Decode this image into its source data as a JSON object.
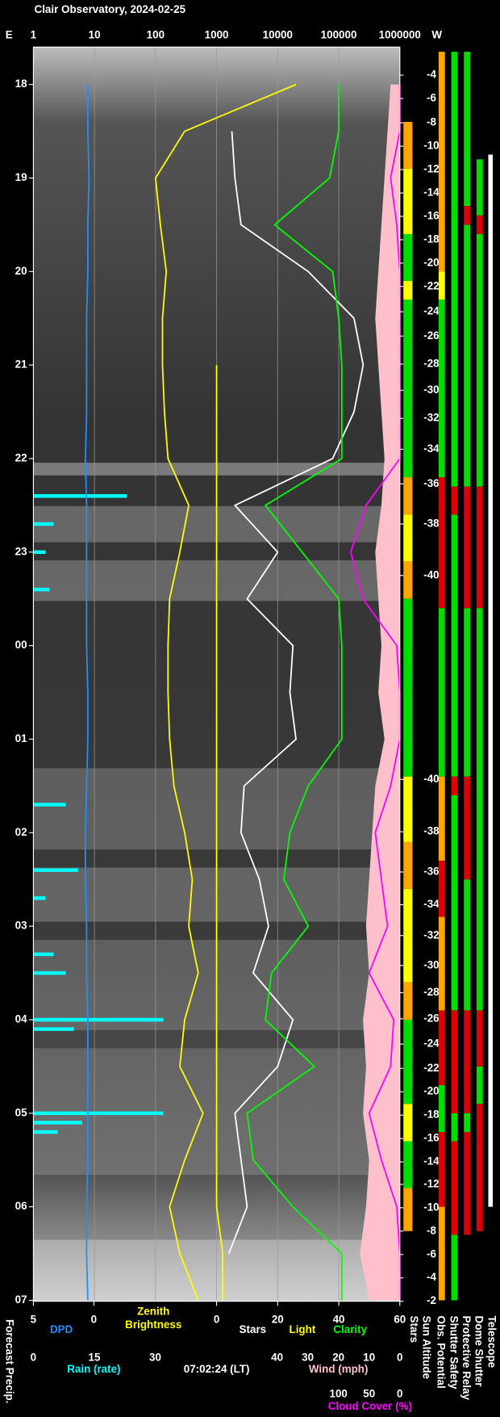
{
  "chart_data": {
    "type": "observatory",
    "title": "Clair Observatory, 2024-02-25",
    "left_label": "E",
    "right_label": "W",
    "time_axis": {
      "lim": [
        17.6,
        31.01
      ],
      "ticks": [
        18,
        19,
        20,
        21,
        22,
        23,
        {
          "value": 24,
          "label": "00"
        },
        {
          "value": 25,
          "label": "01"
        },
        {
          "value": 26,
          "label": "02"
        },
        {
          "value": 27,
          "label": "03"
        },
        {
          "value": 28,
          "label": "04"
        },
        {
          "value": 29,
          "label": "05"
        },
        {
          "value": 30,
          "label": "06"
        },
        {
          "value": 31,
          "label": "07"
        }
      ]
    },
    "top_axis": {
      "lim": [
        1,
        1000000
      ],
      "log": true,
      "grid": true,
      "ticks": [
        1,
        10,
        100,
        1000,
        10000,
        100000,
        1000000
      ]
    },
    "x": [
      18,
      18.5,
      19,
      19.5,
      20,
      20.5,
      21,
      21.5,
      22,
      22.5,
      23,
      23.5,
      24,
      24.5,
      25,
      25.5,
      26,
      26.5,
      27,
      27.5,
      28,
      28.5,
      29,
      29.5,
      30,
      30.5,
      31
    ],
    "series": [
      {
        "name": "Zenith Brightness",
        "color": "#ffff00",
        "axis": "top",
        "values": [
          20000,
          300,
          100,
          120,
          150,
          130,
          130,
          140,
          160,
          350,
          250,
          170,
          160,
          160,
          170,
          200,
          300,
          400,
          350,
          500,
          300,
          250,
          600,
          300,
          170,
          250,
          500
        ]
      },
      {
        "name": "Stars",
        "color": "#ffffff",
        "axis": "sky",
        "values": [
          null,
          5,
          6,
          8,
          30,
          45,
          48,
          45,
          38,
          6,
          20,
          10,
          25,
          24,
          26,
          9,
          8,
          14,
          17,
          12,
          25,
          20,
          6,
          8,
          10,
          4,
          null
        ]
      },
      {
        "name": "Light",
        "color": "#ffff00",
        "axis": "sky",
        "values": [
          null,
          null,
          null,
          null,
          null,
          null,
          0,
          0,
          0,
          0,
          0,
          0,
          0,
          0,
          0,
          0,
          0,
          0,
          0,
          0,
          0,
          0,
          0,
          0,
          0,
          2,
          2
        ]
      },
      {
        "name": "Clarity",
        "color": "#00ff00",
        "axis": "sky",
        "values": [
          40,
          40,
          37,
          19,
          38,
          40,
          41,
          41,
          41,
          16,
          28,
          40,
          41,
          41,
          41,
          30,
          24,
          22,
          30,
          18,
          16,
          32,
          10,
          12,
          25,
          41,
          41
        ]
      },
      {
        "name": "Cloud Cover (%)",
        "color": "#ff00ff",
        "axis": "cloud",
        "values": [
          0,
          0,
          15,
          5,
          0,
          0,
          0,
          0,
          0,
          55,
          80,
          60,
          5,
          0,
          0,
          15,
          40,
          30,
          20,
          50,
          10,
          15,
          50,
          30,
          5,
          0,
          0
        ]
      },
      {
        "name": "Wind (mph)",
        "color": "#ffc0cb",
        "axis": "wind",
        "fill": true,
        "values": [
          3,
          4,
          5,
          6,
          7,
          8,
          7,
          6,
          5,
          6,
          8,
          7,
          6,
          7,
          5,
          8,
          9,
          10,
          11,
          10,
          12,
          11,
          12,
          10,
          11,
          13,
          10
        ]
      },
      {
        "name": "DPD",
        "color": "#1e90ff",
        "axis": "dpd",
        "values": [
          0.5,
          0.5,
          0.4,
          0.5,
          0.5,
          0.6,
          0.6,
          0.6,
          0.7,
          0.6,
          0.6,
          0.6,
          0.6,
          0.5,
          0.5,
          0.6,
          0.7,
          0.7,
          0.6,
          0.6,
          0.5,
          0.5,
          0.5,
          0.5,
          0.6,
          0.6,
          0.5
        ]
      }
    ],
    "rain": {
      "name": "Rain (rate)",
      "color": "#00ffff",
      "x": [
        22.4,
        22.7,
        23.0,
        23.4,
        25.7,
        26.4,
        26.7,
        27.3,
        27.5,
        28.0,
        28.1,
        29.0,
        29.1,
        29.2
      ],
      "values": [
        23,
        5,
        3,
        4,
        8,
        11,
        3,
        5,
        8,
        32,
        10,
        32,
        12,
        6
      ]
    },
    "axes": {
      "dpd": {
        "lim": [
          5,
          0
        ],
        "ticks": [
          5,
          0
        ]
      },
      "rain": {
        "lim": [
          0,
          30
        ],
        "ticks": [
          0,
          15,
          30
        ]
      },
      "sky": {
        "lim": [
          0,
          60
        ],
        "ticks": [
          0,
          20,
          40,
          60
        ]
      },
      "wind": {
        "lim": [
          40,
          0
        ],
        "ticks": [
          40,
          30,
          20,
          10,
          0
        ]
      },
      "cloud": {
        "lim": [
          100,
          0
        ],
        "ticks": [
          100,
          50,
          0
        ]
      }
    },
    "timestamp": "07:02:24 (LT)",
    "forecast_label": "Forecast Precip.",
    "sun_altitude": {
      "name": "Sun Altitude",
      "x": [
        17.9,
        18.15,
        18.41,
        18.66,
        18.91,
        19.16,
        19.41,
        19.66,
        19.91,
        20.16,
        20.43,
        20.69,
        20.99,
        21.27,
        21.57,
        21.9,
        22.27,
        22.7,
        23.25,
        25.43,
        25.99,
        26.42,
        26.77,
        27.1,
        27.42,
        27.71,
        27.99,
        28.26,
        28.52,
        28.77,
        29.02,
        29.27,
        29.52,
        29.76,
        30.01,
        30.26,
        30.51,
        30.76,
        31.01
      ],
      "values": [
        -4,
        -6,
        -8,
        -10,
        -12,
        -14,
        -16,
        -18,
        -20,
        -22,
        -24,
        -26,
        -28,
        -30,
        -32,
        -34,
        -36,
        -38,
        -40,
        -40,
        -38,
        -36,
        -34,
        -32,
        -30,
        -28,
        -26,
        -24,
        -22,
        -20,
        -18,
        -16,
        -14,
        -12,
        -10,
        -8,
        -6,
        -4,
        -2
      ]
    },
    "status": [
      {
        "name": "Stars",
        "segments": [
          {
            "start": 18.4,
            "end": 18.9,
            "color": "#ffa500"
          },
          {
            "start": 18.9,
            "end": 19.6,
            "color": "#ffff00"
          },
          {
            "start": 19.6,
            "end": 20.1,
            "color": "#00dd00"
          },
          {
            "start": 20.1,
            "end": 20.3,
            "color": "#ffff00"
          },
          {
            "start": 20.3,
            "end": 22.2,
            "color": "#00dd00"
          },
          {
            "start": 22.2,
            "end": 22.6,
            "color": "#ffa500"
          },
          {
            "start": 22.6,
            "end": 23.1,
            "color": "#ffff00"
          },
          {
            "start": 23.1,
            "end": 23.5,
            "color": "#ffa500"
          },
          {
            "start": 23.5,
            "end": 25.4,
            "color": "#00dd00"
          },
          {
            "start": 25.4,
            "end": 26.1,
            "color": "#ffff00"
          },
          {
            "start": 26.1,
            "end": 26.6,
            "color": "#ffa500"
          },
          {
            "start": 26.6,
            "end": 27.6,
            "color": "#ffff00"
          },
          {
            "start": 27.6,
            "end": 28.0,
            "color": "#ffa500"
          },
          {
            "start": 28.0,
            "end": 28.9,
            "color": "#00dd00"
          },
          {
            "start": 28.9,
            "end": 29.3,
            "color": "#ffff00"
          },
          {
            "start": 29.3,
            "end": 29.8,
            "color": "#00dd00"
          },
          {
            "start": 29.8,
            "end": 30.26,
            "color": "#ffa500"
          }
        ]
      },
      {
        "name": "Obs. Potential",
        "segments": [
          {
            "start": 17.65,
            "end": 20.0,
            "color": "#ffa500"
          },
          {
            "start": 20.0,
            "end": 20.3,
            "color": "#ffff00"
          },
          {
            "start": 20.3,
            "end": 22.2,
            "color": "#00dd00"
          },
          {
            "start": 22.2,
            "end": 23.6,
            "color": "#dd0000"
          },
          {
            "start": 23.6,
            "end": 25.4,
            "color": "#00dd00"
          },
          {
            "start": 25.4,
            "end": 26.3,
            "color": "#ffa500"
          },
          {
            "start": 26.3,
            "end": 26.9,
            "color": "#dd0000"
          },
          {
            "start": 26.9,
            "end": 27.9,
            "color": "#ffa500"
          },
          {
            "start": 27.9,
            "end": 28.7,
            "color": "#dd0000"
          },
          {
            "start": 28.7,
            "end": 29.2,
            "color": "#00dd00"
          },
          {
            "start": 29.2,
            "end": 30.0,
            "color": "#dd0000"
          },
          {
            "start": 30.0,
            "end": 31.0,
            "color": "#ffa500"
          }
        ]
      },
      {
        "name": "Shutter Safety",
        "segments": [
          {
            "start": 17.65,
            "end": 22.3,
            "color": "#00dd00"
          },
          {
            "start": 22.3,
            "end": 22.6,
            "color": "#dd0000"
          },
          {
            "start": 22.6,
            "end": 25.4,
            "color": "#00dd00"
          },
          {
            "start": 25.4,
            "end": 25.6,
            "color": "#dd0000"
          },
          {
            "start": 25.6,
            "end": 27.9,
            "color": "#00dd00"
          },
          {
            "start": 27.9,
            "end": 29.0,
            "color": "#dd0000"
          },
          {
            "start": 29.0,
            "end": 29.3,
            "color": "#00dd00"
          },
          {
            "start": 29.3,
            "end": 30.3,
            "color": "#dd0000"
          },
          {
            "start": 30.3,
            "end": 31.0,
            "color": "#00dd00"
          }
        ]
      },
      {
        "name": "Protective Relay",
        "segments": [
          {
            "start": 17.65,
            "end": 19.3,
            "color": "#00dd00"
          },
          {
            "start": 19.3,
            "end": 19.5,
            "color": "#dd0000"
          },
          {
            "start": 19.5,
            "end": 22.3,
            "color": "#00dd00"
          },
          {
            "start": 22.3,
            "end": 23.6,
            "color": "#dd0000"
          },
          {
            "start": 23.6,
            "end": 25.4,
            "color": "#00dd00"
          },
          {
            "start": 25.4,
            "end": 26.5,
            "color": "#dd0000"
          },
          {
            "start": 26.5,
            "end": 27.9,
            "color": "#00dd00"
          },
          {
            "start": 27.9,
            "end": 29.0,
            "color": "#dd0000"
          },
          {
            "start": 29.0,
            "end": 29.2,
            "color": "#00dd00"
          },
          {
            "start": 29.2,
            "end": 30.3,
            "color": "#dd0000"
          }
        ]
      },
      {
        "name": "Dome Shutter",
        "segments": [
          {
            "start": 18.8,
            "end": 19.4,
            "color": "#00dd00"
          },
          {
            "start": 19.4,
            "end": 19.6,
            "color": "#dd0000"
          },
          {
            "start": 19.6,
            "end": 22.3,
            "color": "#00dd00"
          },
          {
            "start": 22.3,
            "end": 23.6,
            "color": "#dd0000"
          },
          {
            "start": 23.6,
            "end": 27.9,
            "color": "#00dd00"
          },
          {
            "start": 27.9,
            "end": 28.5,
            "color": "#dd0000"
          },
          {
            "start": 28.5,
            "end": 28.9,
            "color": "#00dd00"
          },
          {
            "start": 28.9,
            "end": 30.26,
            "color": "#dd0000"
          }
        ]
      },
      {
        "name": "Telescope",
        "segments": [
          {
            "start": 18.75,
            "end": 30.0,
            "color": "#ffffff"
          }
        ]
      }
    ]
  }
}
